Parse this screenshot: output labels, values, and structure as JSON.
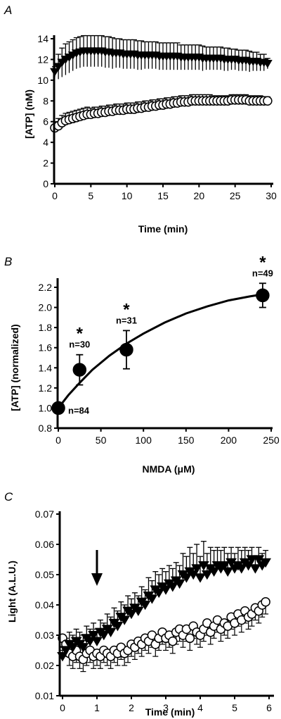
{
  "chart_data": [
    {
      "type": "scatter",
      "panel_label": "A",
      "xlabel": "Time (min)",
      "ylabel": "[ATP] (nM)",
      "xlim": [
        0,
        30
      ],
      "ylim": [
        0,
        14
      ],
      "x_ticks": [
        0,
        5,
        10,
        15,
        20,
        25,
        30
      ],
      "y_ticks": [
        0,
        2,
        4,
        6,
        8,
        10,
        12,
        14
      ],
      "grid": false,
      "series": [
        {
          "marker": "filled-triangle-down",
          "x": [
            0,
            0.5,
            1,
            1.5,
            2,
            2.5,
            3,
            3.5,
            4,
            4.5,
            5,
            5.5,
            6,
            6.5,
            7,
            7.5,
            8,
            8.5,
            9,
            9.5,
            10,
            10.5,
            11,
            11.5,
            12,
            12.5,
            13,
            13.5,
            14,
            14.5,
            15,
            15.5,
            16,
            16.5,
            17,
            17.5,
            18,
            18.5,
            19,
            19.5,
            20,
            20.5,
            21,
            21.5,
            22,
            22.5,
            23,
            23.5,
            24,
            24.5,
            25,
            25.5,
            26,
            26.5,
            27,
            27.5,
            28,
            28.5,
            29,
            29.5
          ],
          "y": [
            10.8,
            11.3,
            11.7,
            12.0,
            12.2,
            12.4,
            12.6,
            12.7,
            12.8,
            12.8,
            12.8,
            12.8,
            12.8,
            12.8,
            12.7,
            12.7,
            12.6,
            12.6,
            12.6,
            12.5,
            12.5,
            12.5,
            12.5,
            12.4,
            12.4,
            12.4,
            12.4,
            12.4,
            12.4,
            12.3,
            12.3,
            12.3,
            12.3,
            12.3,
            12.3,
            12.2,
            12.2,
            12.2,
            12.2,
            12.2,
            12.2,
            12.1,
            12.1,
            12.1,
            12.1,
            12.1,
            12.1,
            12.0,
            12.0,
            12.0,
            12.0,
            11.9,
            11.9,
            11.9,
            11.8,
            11.8,
            11.8,
            11.7,
            11.7,
            11.6
          ],
          "error": [
            0.5,
            1.2,
            1.4,
            1.5,
            1.5,
            1.5,
            1.5,
            1.5,
            1.5,
            1.5,
            1.5,
            1.5,
            1.5,
            1.5,
            1.5,
            1.5,
            1.5,
            1.4,
            1.4,
            1.4,
            1.4,
            1.4,
            1.4,
            1.4,
            1.4,
            1.3,
            1.3,
            1.3,
            1.3,
            1.3,
            1.3,
            1.3,
            1.3,
            1.3,
            1.3,
            1.2,
            1.2,
            1.2,
            1.2,
            1.2,
            1.2,
            1.2,
            1.1,
            1.1,
            1.1,
            1.1,
            1.1,
            1.1,
            1.1,
            1.0,
            1.0,
            1.0,
            1.0,
            1.0,
            1.0,
            0.9,
            0.9,
            0.8,
            0.8,
            0.5
          ]
        },
        {
          "marker": "open-circle",
          "x": [
            0,
            0.5,
            1,
            1.5,
            2,
            2.5,
            3,
            3.5,
            4,
            4.5,
            5,
            5.5,
            6,
            6.5,
            7,
            7.5,
            8,
            8.5,
            9,
            9.5,
            10,
            10.5,
            11,
            11.5,
            12,
            12.5,
            13,
            13.5,
            14,
            14.5,
            15,
            15.5,
            16,
            16.5,
            17,
            17.5,
            18,
            18.5,
            19,
            19.5,
            20,
            20.5,
            21,
            21.5,
            22,
            22.5,
            23,
            23.5,
            24,
            24.5,
            25,
            25.5,
            26,
            26.5,
            27,
            27.5,
            28,
            28.5,
            29,
            29.5
          ],
          "y": [
            5.4,
            5.6,
            5.9,
            6.1,
            6.2,
            6.3,
            6.4,
            6.5,
            6.6,
            6.7,
            6.7,
            6.8,
            6.8,
            6.9,
            6.9,
            7.0,
            7.0,
            7.1,
            7.1,
            7.1,
            7.2,
            7.2,
            7.2,
            7.3,
            7.3,
            7.4,
            7.4,
            7.5,
            7.5,
            7.6,
            7.6,
            7.7,
            7.7,
            7.8,
            7.8,
            7.9,
            7.9,
            7.9,
            8.0,
            8.0,
            8.0,
            8.0,
            8.0,
            8.0,
            8.0,
            8.0,
            8.0,
            8.0,
            8.0,
            8.1,
            8.1,
            8.1,
            8.1,
            8.1,
            8.0,
            8.0,
            8.0,
            8.0,
            8.0,
            8.0
          ],
          "error": [
            0.6,
            0.7,
            0.7,
            0.7,
            0.7,
            0.7,
            0.7,
            0.7,
            0.7,
            0.7,
            0.6,
            0.6,
            0.6,
            0.6,
            0.6,
            0.6,
            0.6,
            0.6,
            0.6,
            0.6,
            0.6,
            0.6,
            0.6,
            0.6,
            0.6,
            0.6,
            0.6,
            0.6,
            0.6,
            0.6,
            0.6,
            0.6,
            0.6,
            0.6,
            0.6,
            0.6,
            0.6,
            0.6,
            0.6,
            0.6,
            0.6,
            0.6,
            0.6,
            0.6,
            0.5,
            0.5,
            0.5,
            0.5,
            0.5,
            0.5,
            0.5,
            0.5,
            0.5,
            0.5,
            0.5,
            0.5,
            0.5,
            0.5,
            0.4,
            0.4
          ]
        }
      ]
    },
    {
      "type": "scatter",
      "panel_label": "B",
      "xlabel": "NMDA (μM)",
      "ylabel": "[ATP] (normalized)",
      "xlim": [
        0,
        250
      ],
      "ylim": [
        0.8,
        2.2
      ],
      "x_ticks": [
        0,
        50,
        100,
        150,
        200,
        250
      ],
      "y_ticks": [
        0.8,
        1.0,
        1.2,
        1.4,
        1.6,
        1.8,
        2.0,
        2.2
      ],
      "y_tick_labels": [
        "0.8",
        "1.0",
        "1.2",
        "1.4",
        "1.6",
        "1.8",
        "2.0",
        "2.2"
      ],
      "grid": false,
      "points": {
        "marker": "filled-circle",
        "x": [
          0,
          25,
          80,
          240
        ],
        "y": [
          1.0,
          1.38,
          1.58,
          2.12
        ],
        "error": [
          0.0,
          0.15,
          0.19,
          0.12
        ],
        "n_labels": [
          "n=84",
          "n=30",
          "n=31",
          "n=49"
        ],
        "significance": [
          "",
          "*",
          "*",
          "*"
        ]
      },
      "fit_curve": {
        "x": [
          0,
          12,
          25,
          40,
          60,
          80,
          100,
          125,
          150,
          175,
          200,
          225,
          240
        ],
        "y": [
          1.0,
          1.13,
          1.25,
          1.38,
          1.52,
          1.64,
          1.74,
          1.85,
          1.94,
          2.01,
          2.07,
          2.11,
          2.13
        ]
      }
    },
    {
      "type": "scatter",
      "panel_label": "C",
      "xlabel": "Time (min)",
      "ylabel": "Light (A.L.U.)",
      "xlim": [
        0,
        6
      ],
      "ylim": [
        0.01,
        0.07
      ],
      "x_ticks": [
        0,
        1,
        2,
        3,
        4,
        5,
        6
      ],
      "y_ticks": [
        0.01,
        0.02,
        0.03,
        0.04,
        0.05,
        0.06,
        0.07
      ],
      "y_tick_labels": [
        "0.01",
        "0.02",
        "0.03",
        "0.04",
        "0.05",
        "0.06",
        "0.07"
      ],
      "grid": false,
      "arrow_at_x": 1,
      "series": [
        {
          "marker": "filled-triangle-down",
          "x": [
            0,
            0.1,
            0.2,
            0.3,
            0.4,
            0.5,
            0.6,
            0.7,
            0.8,
            0.9,
            1.0,
            1.1,
            1.2,
            1.3,
            1.4,
            1.5,
            1.6,
            1.7,
            1.8,
            1.9,
            2.0,
            2.1,
            2.2,
            2.3,
            2.4,
            2.5,
            2.6,
            2.7,
            2.8,
            2.9,
            3.0,
            3.1,
            3.2,
            3.3,
            3.4,
            3.5,
            3.6,
            3.7,
            3.8,
            3.9,
            4.0,
            4.1,
            4.2,
            4.3,
            4.4,
            4.5,
            4.6,
            4.7,
            4.8,
            4.9,
            5.0,
            5.1,
            5.2,
            5.3,
            5.4,
            5.5,
            5.6,
            5.7,
            5.8,
            5.9
          ],
          "y": [
            0.023,
            0.025,
            0.027,
            0.026,
            0.028,
            0.027,
            0.026,
            0.029,
            0.028,
            0.03,
            0.028,
            0.031,
            0.03,
            0.032,
            0.031,
            0.034,
            0.033,
            0.036,
            0.035,
            0.038,
            0.037,
            0.039,
            0.038,
            0.041,
            0.04,
            0.043,
            0.042,
            0.045,
            0.044,
            0.046,
            0.045,
            0.047,
            0.046,
            0.048,
            0.047,
            0.05,
            0.049,
            0.051,
            0.05,
            0.052,
            0.049,
            0.053,
            0.05,
            0.052,
            0.051,
            0.053,
            0.052,
            0.053,
            0.051,
            0.054,
            0.052,
            0.053,
            0.052,
            0.054,
            0.053,
            0.055,
            0.052,
            0.055,
            0.053,
            0.054
          ],
          "error": [
            0.003,
            0.004,
            0.004,
            0.004,
            0.004,
            0.004,
            0.004,
            0.004,
            0.004,
            0.004,
            0.004,
            0.004,
            0.004,
            0.005,
            0.005,
            0.005,
            0.005,
            0.005,
            0.005,
            0.005,
            0.005,
            0.005,
            0.005,
            0.005,
            0.005,
            0.006,
            0.006,
            0.006,
            0.006,
            0.006,
            0.006,
            0.006,
            0.006,
            0.006,
            0.006,
            0.007,
            0.007,
            0.008,
            0.007,
            0.008,
            0.007,
            0.008,
            0.007,
            0.007,
            0.007,
            0.006,
            0.006,
            0.006,
            0.006,
            0.005,
            0.005,
            0.006,
            0.006,
            0.005,
            0.005,
            0.004,
            0.004,
            0.004,
            0.004,
            0.004
          ]
        },
        {
          "marker": "open-circle",
          "x": [
            0,
            0.1,
            0.2,
            0.3,
            0.4,
            0.5,
            0.6,
            0.7,
            0.8,
            0.9,
            1.0,
            1.1,
            1.2,
            1.3,
            1.4,
            1.5,
            1.6,
            1.7,
            1.8,
            1.9,
            2.0,
            2.1,
            2.2,
            2.3,
            2.4,
            2.5,
            2.6,
            2.7,
            2.8,
            2.9,
            3.0,
            3.1,
            3.2,
            3.3,
            3.4,
            3.5,
            3.6,
            3.7,
            3.8,
            3.9,
            4.0,
            4.1,
            4.2,
            4.3,
            4.4,
            4.5,
            4.6,
            4.7,
            4.8,
            4.9,
            5.0,
            5.1,
            5.2,
            5.3,
            5.4,
            5.5,
            5.6,
            5.7,
            5.8,
            5.9
          ],
          "y": [
            0.029,
            0.027,
            0.024,
            0.023,
            0.025,
            0.023,
            0.022,
            0.024,
            0.025,
            0.023,
            0.024,
            0.023,
            0.025,
            0.024,
            0.023,
            0.025,
            0.024,
            0.026,
            0.024,
            0.025,
            0.027,
            0.026,
            0.028,
            0.027,
            0.029,
            0.028,
            0.03,
            0.027,
            0.029,
            0.031,
            0.029,
            0.03,
            0.028,
            0.031,
            0.032,
            0.03,
            0.032,
            0.029,
            0.033,
            0.031,
            0.03,
            0.032,
            0.034,
            0.031,
            0.033,
            0.035,
            0.032,
            0.034,
            0.033,
            0.036,
            0.034,
            0.037,
            0.035,
            0.038,
            0.036,
            0.037,
            0.039,
            0.038,
            0.04,
            0.041
          ],
          "error": [
            0.004,
            0.004,
            0.004,
            0.004,
            0.004,
            0.004,
            0.004,
            0.004,
            0.004,
            0.004,
            0.004,
            0.004,
            0.004,
            0.004,
            0.004,
            0.004,
            0.004,
            0.004,
            0.004,
            0.004,
            0.004,
            0.004,
            0.004,
            0.004,
            0.004,
            0.004,
            0.004,
            0.004,
            0.004,
            0.004,
            0.004,
            0.004,
            0.004,
            0.004,
            0.004,
            0.004,
            0.004,
            0.004,
            0.004,
            0.004,
            0.004,
            0.004,
            0.004,
            0.004,
            0.004,
            0.004,
            0.004,
            0.004,
            0.004,
            0.004,
            0.004,
            0.004,
            0.004,
            0.004,
            0.004,
            0.004,
            0.004,
            0.004,
            0.004,
            0.004
          ]
        }
      ]
    }
  ]
}
